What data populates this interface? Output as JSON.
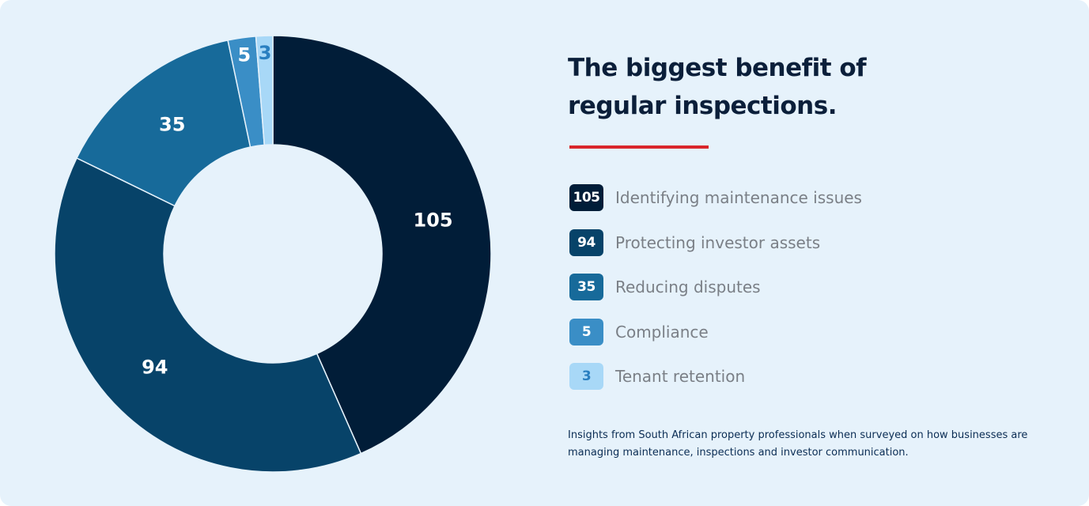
{
  "title_lines": [
    "The biggest benefit of",
    "regular inspections."
  ],
  "footnote_lines": [
    "Insights from South African property professionals when surveyed on how businesses are",
    "managing maintenance, inspections and investor communication."
  ],
  "colors": {
    "background": "#e6f2fb",
    "title": "#0b1f3a",
    "accent_rule": "#d9262b",
    "legend_text": "#7a7f86"
  },
  "chart_data": {
    "type": "pie",
    "variant": "donut",
    "title": "The biggest benefit of regular inspections.",
    "slices": [
      {
        "label": "Identifying maintenance issues",
        "value": 105,
        "color": "#011d38",
        "text_color": "#ffffff"
      },
      {
        "label": "Protecting investor assets",
        "value": 94,
        "color": "#074369",
        "text_color": "#ffffff"
      },
      {
        "label": "Reducing disputes",
        "value": 35,
        "color": "#176a9a",
        "text_color": "#ffffff"
      },
      {
        "label": "Compliance",
        "value": 5,
        "color": "#3a8ec6",
        "text_color": "#ffffff"
      },
      {
        "label": "Tenant retention",
        "value": 3,
        "color": "#a8d8f7",
        "text_color": "#2a7fc0"
      }
    ],
    "start_angle": "12 o'clock",
    "direction": "clockwise",
    "legend_position": "right"
  }
}
